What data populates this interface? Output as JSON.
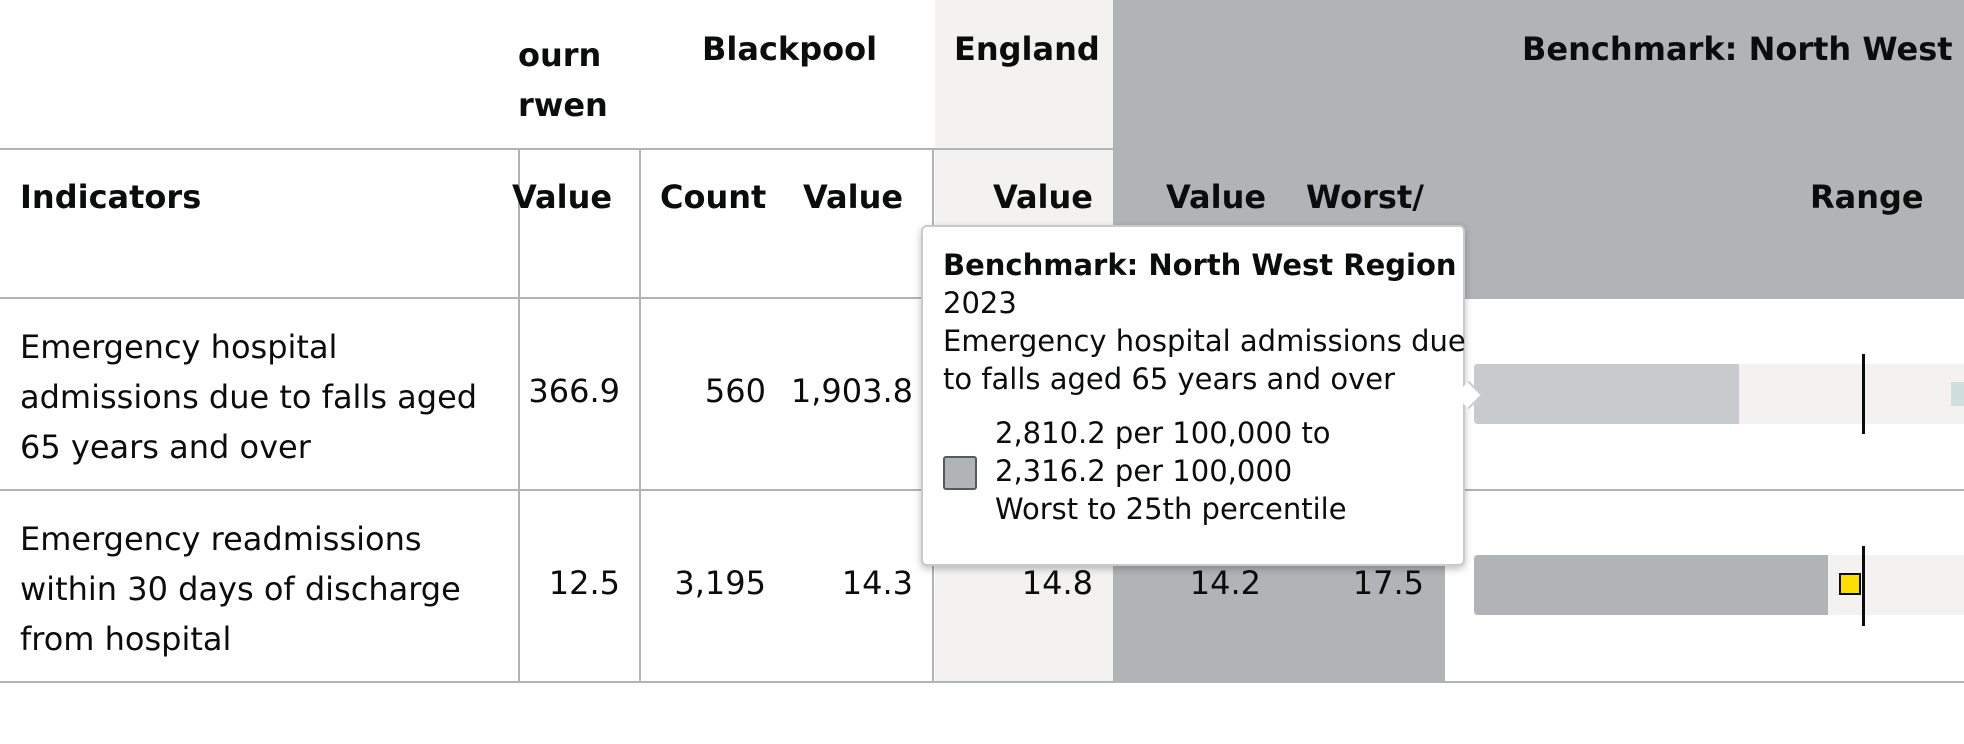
{
  "header": {
    "area1_fragment_line1": "ourn",
    "area1_fragment_line2": "rwen",
    "area2": "Blackpool",
    "england": "England",
    "benchmark": "Benchmark: North West R"
  },
  "subheader": {
    "indicators": "Indicators",
    "area1_value": "Value",
    "count": "Count",
    "value": "Value",
    "england_value": "Value",
    "bench_value": "Value",
    "worst": "Worst/",
    "range": "Range"
  },
  "rows": [
    {
      "label": [
        "Emergency hospital",
        "admissions due to falls aged",
        "65 years and over"
      ],
      "area1_value": "366.9",
      "count": "560",
      "value": "1,903.8",
      "england_value": "",
      "bench_value": "",
      "worst": ""
    },
    {
      "label": [
        "Emergency readmissions",
        "within 30 days of discharge",
        "from hospital"
      ],
      "area1_value": "12.5",
      "count": "3,195",
      "value": "14.3",
      "england_value": "14.8",
      "bench_value": "14.2",
      "worst": "17.5"
    }
  ],
  "tooltip": {
    "title": "Benchmark: North West Region",
    "year": "2023",
    "indicator_line1": "Emergency hospital admissions due",
    "indicator_line2": "to falls aged 65 years and over",
    "range_line1": "2,810.2 per 100,000 to",
    "range_line2": "2,316.2 per 100,000",
    "range_line3": "Worst to 25th percentile"
  },
  "colors": {
    "benchmark_bg": "#b1b4b6",
    "england_bg": "#f3f2f1",
    "area_marker": "#ffdd00",
    "range_band_light": "#c7cbce",
    "range_band_dark": "#b1b4b6"
  }
}
